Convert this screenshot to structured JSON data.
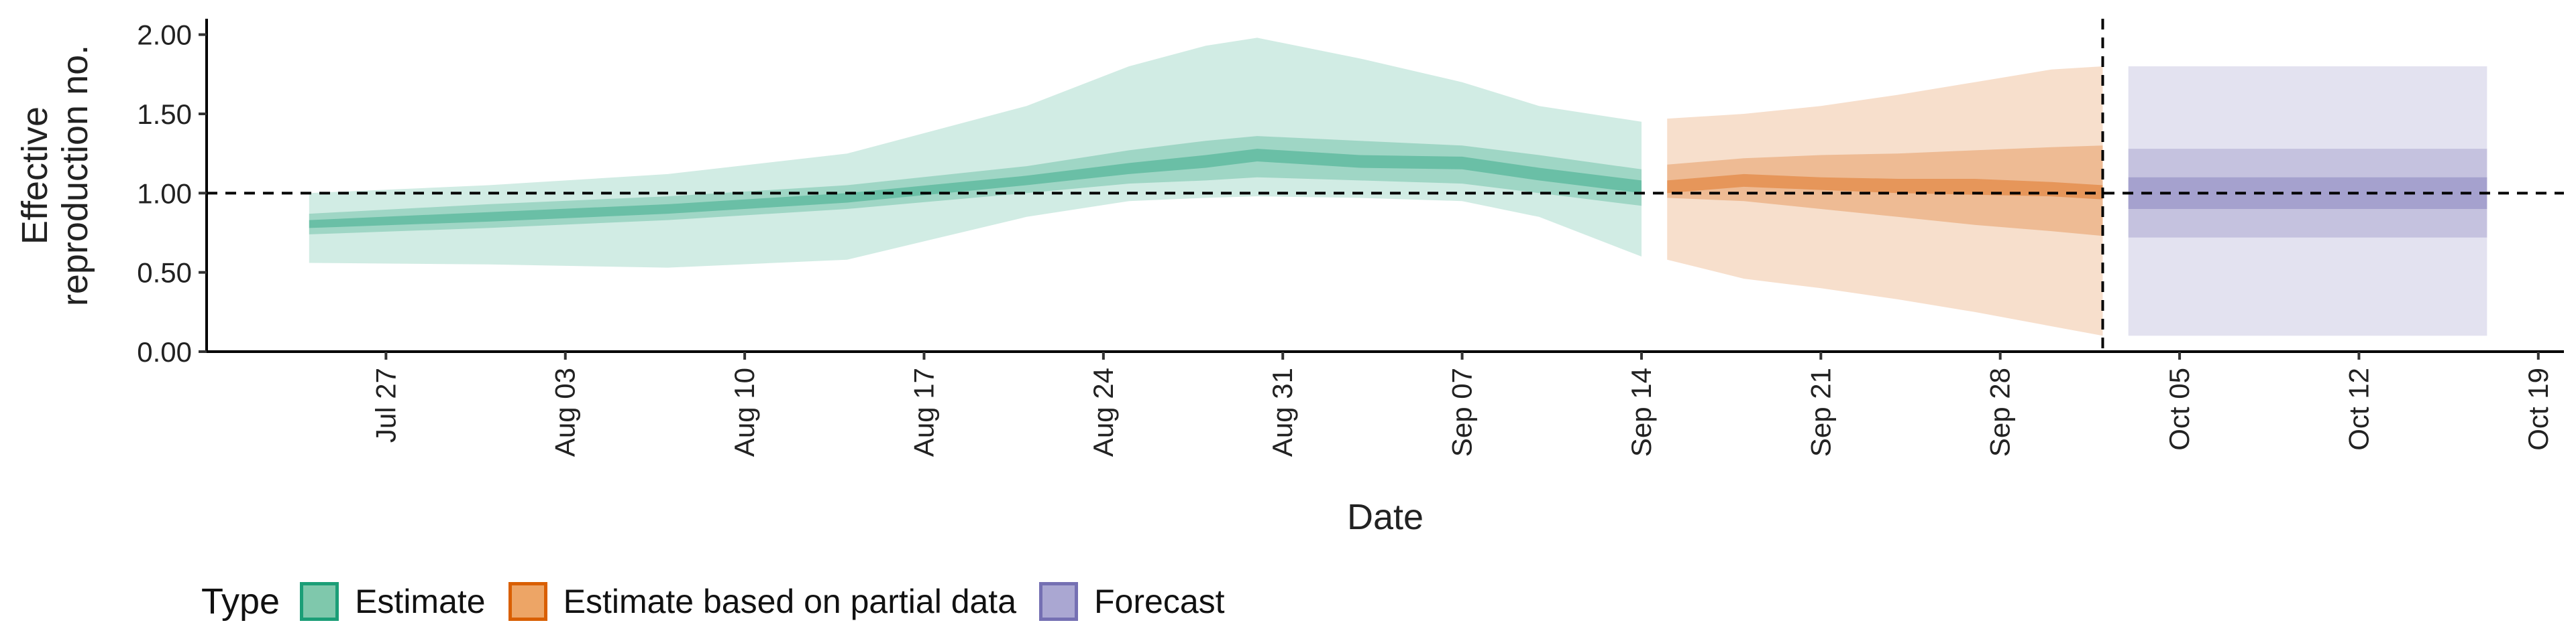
{
  "chart_data": {
    "type": "area",
    "xlabel": "Date",
    "ylabel_lines": [
      "Effective",
      "reproduction no."
    ],
    "ylim": [
      0,
      2.1
    ],
    "xlim": [
      "2021-07-20",
      "2021-10-20"
    ],
    "x_ticks": [
      "2021-07-27",
      "2021-08-03",
      "2021-08-10",
      "2021-08-17",
      "2021-08-24",
      "2021-08-31",
      "2021-09-07",
      "2021-09-14",
      "2021-09-21",
      "2021-09-28",
      "2021-10-05",
      "2021-10-12",
      "2021-10-19"
    ],
    "x_tick_labels": [
      "Jul 27",
      "Aug 03",
      "Aug 10",
      "Aug 17",
      "Aug 24",
      "Aug 31",
      "Sep 07",
      "Sep 14",
      "Sep 21",
      "Sep 28",
      "Oct 05",
      "Oct 12",
      "Oct 19"
    ],
    "y_ticks": [
      0,
      0.5,
      1,
      1.5,
      2
    ],
    "y_tick_labels": [
      "0.00",
      "0.50",
      "1.00",
      "1.50",
      "2.00"
    ],
    "reference_line_y": 1.0,
    "forecast_start_line_x": "2021-10-02",
    "legend": {
      "title": "Type",
      "position": "bottom",
      "items": [
        {
          "label": "Estimate",
          "fill": "#7fc8ac",
          "border": "#1b9e77"
        },
        {
          "label": "Estimate based on partial data",
          "fill": "#eda566",
          "border": "#d95f02"
        },
        {
          "label": "Forecast",
          "fill": "#aaa7d2",
          "border": "#7570b3"
        }
      ]
    },
    "series": [
      {
        "name": "Estimate",
        "color": "#1b9e77",
        "x": [
          "2021-07-24",
          "2021-07-31",
          "2021-08-07",
          "2021-08-14",
          "2021-08-21",
          "2021-08-25",
          "2021-08-28",
          "2021-08-30",
          "2021-09-03",
          "2021-09-07",
          "2021-09-10",
          "2021-09-14"
        ],
        "median": [
          0.8,
          0.85,
          0.9,
          0.97,
          1.08,
          1.15,
          1.2,
          1.24,
          1.2,
          1.19,
          1.12,
          1.04
        ],
        "lower_20": [
          0.78,
          0.82,
          0.87,
          0.94,
          1.05,
          1.12,
          1.16,
          1.2,
          1.16,
          1.15,
          1.08,
          1.0
        ],
        "upper_20": [
          0.83,
          0.88,
          0.93,
          1.0,
          1.11,
          1.19,
          1.24,
          1.28,
          1.24,
          1.23,
          1.16,
          1.08
        ],
        "lower_50": [
          0.74,
          0.78,
          0.83,
          0.9,
          1.0,
          1.06,
          1.08,
          1.1,
          1.08,
          1.06,
          1.0,
          0.92
        ],
        "upper_50": [
          0.87,
          0.93,
          0.98,
          1.05,
          1.17,
          1.27,
          1.33,
          1.36,
          1.33,
          1.3,
          1.24,
          1.15
        ],
        "lower_90": [
          0.56,
          0.55,
          0.53,
          0.58,
          0.85,
          0.95,
          0.97,
          0.98,
          0.97,
          0.95,
          0.85,
          0.6
        ],
        "upper_90": [
          1.0,
          1.05,
          1.12,
          1.25,
          1.55,
          1.8,
          1.93,
          1.98,
          1.85,
          1.7,
          1.55,
          1.45
        ]
      },
      {
        "name": "Estimate based on partial data",
        "color": "#d95f02",
        "x": [
          "2021-09-15",
          "2021-09-18",
          "2021-09-21",
          "2021-09-24",
          "2021-09-27",
          "2021-09-30",
          "2021-10-02"
        ],
        "median": [
          1.04,
          1.08,
          1.06,
          1.05,
          1.04,
          1.02,
          1.0
        ],
        "lower_20": [
          1.0,
          1.04,
          1.02,
          1.0,
          0.99,
          0.98,
          0.96
        ],
        "upper_20": [
          1.08,
          1.12,
          1.1,
          1.09,
          1.09,
          1.07,
          1.05
        ],
        "lower_50": [
          0.97,
          0.95,
          0.9,
          0.85,
          0.8,
          0.76,
          0.73
        ],
        "upper_50": [
          1.18,
          1.22,
          1.24,
          1.25,
          1.27,
          1.29,
          1.3
        ],
        "lower_90": [
          0.58,
          0.46,
          0.4,
          0.33,
          0.25,
          0.16,
          0.1
        ],
        "upper_90": [
          1.47,
          1.5,
          1.55,
          1.62,
          1.7,
          1.78,
          1.8
        ]
      },
      {
        "name": "Forecast",
        "color": "#7570b3",
        "x": [
          "2021-10-03",
          "2021-10-17"
        ],
        "median": [
          1.0,
          1.0
        ],
        "lower_20": [
          0.9,
          0.9
        ],
        "upper_20": [
          1.1,
          1.1
        ],
        "lower_50": [
          0.72,
          0.72
        ],
        "upper_50": [
          1.28,
          1.28
        ],
        "lower_90": [
          0.1,
          0.1
        ],
        "upper_90": [
          1.8,
          1.8
        ]
      }
    ]
  }
}
